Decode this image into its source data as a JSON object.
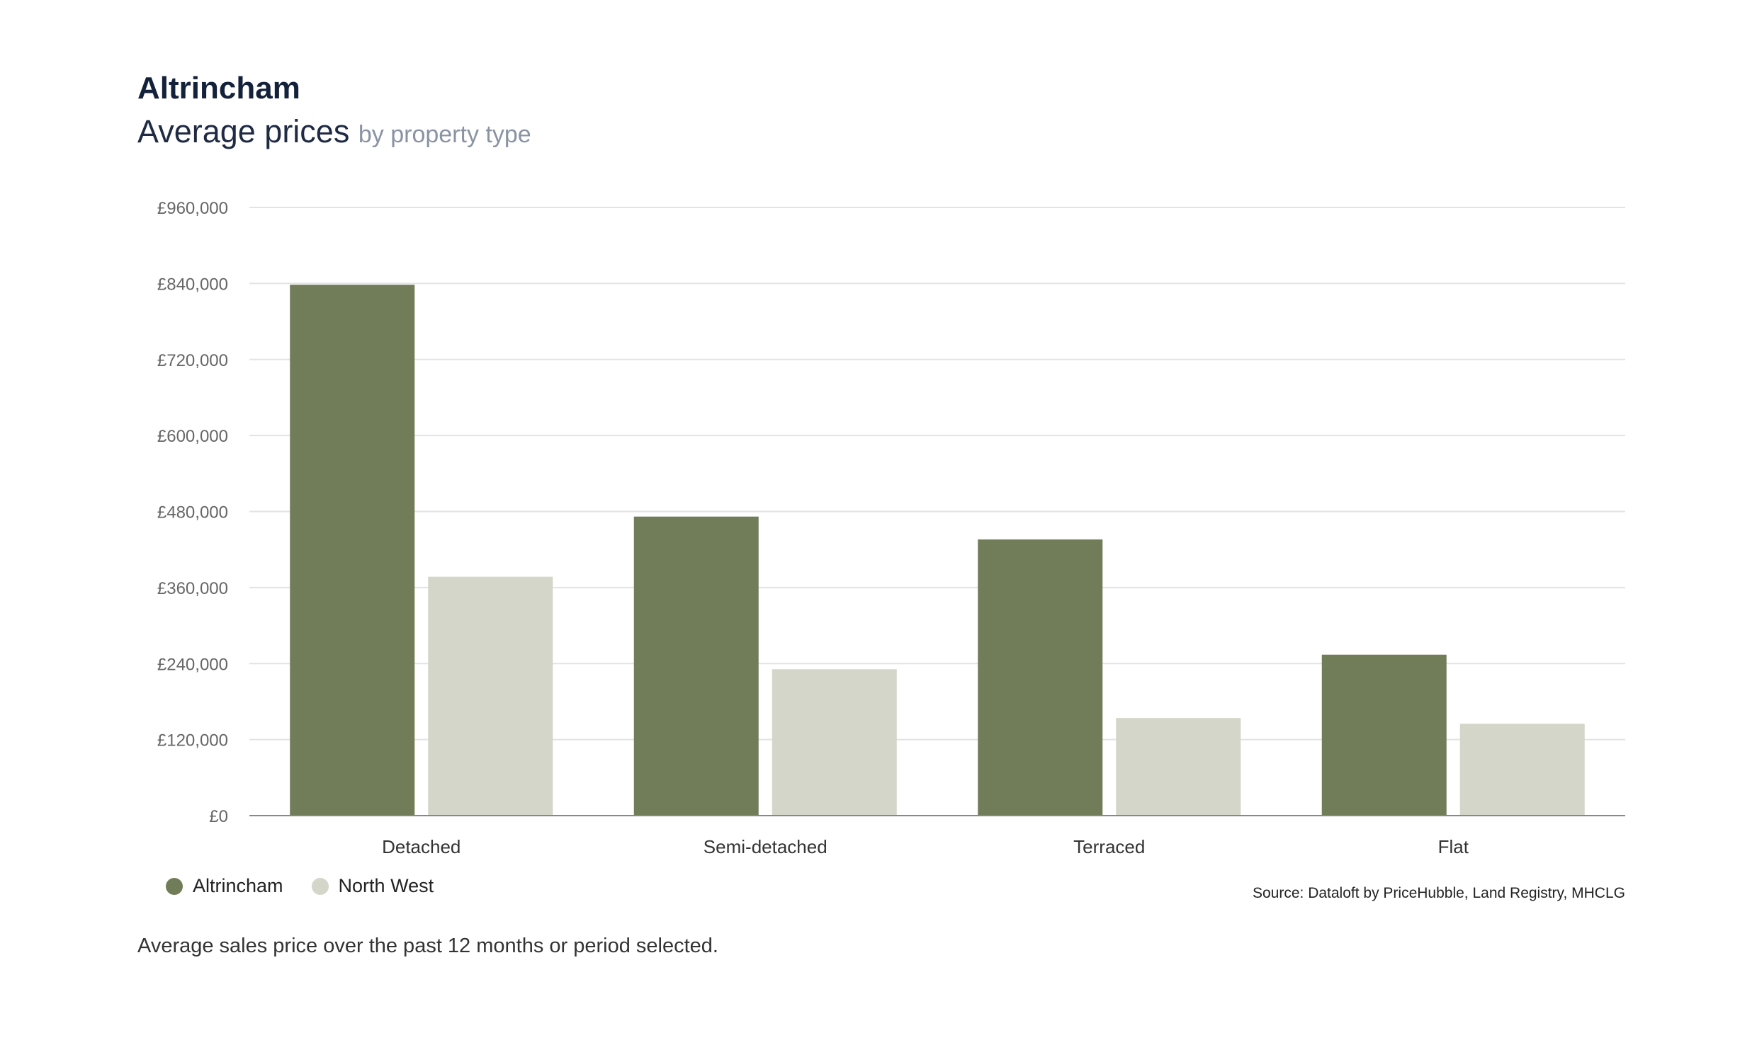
{
  "header": {
    "title": "Altrincham",
    "subtitle": "Average prices",
    "subtitle_muted": "by property type"
  },
  "chart_data": {
    "type": "bar",
    "categories": [
      "Detached",
      "Semi-detached",
      "Terraced",
      "Flat"
    ],
    "series": [
      {
        "name": "Altrincham",
        "color": "#717c58",
        "values": [
          838000,
          472000,
          436000,
          254000
        ]
      },
      {
        "name": "North West",
        "color": "#d3d6c8",
        "values": [
          377000,
          231000,
          154000,
          145000
        ]
      }
    ],
    "ylim": [
      0,
      960000
    ],
    "yticks": [
      0,
      120000,
      240000,
      360000,
      480000,
      600000,
      720000,
      840000,
      960000
    ],
    "ytick_labels": [
      "£0",
      "£120,000",
      "£240,000",
      "£360,000",
      "£480,000",
      "£600,000",
      "£720,000",
      "£840,000",
      "£960,000"
    ],
    "grid": true,
    "legend_placement": "bottom-left"
  },
  "footer": {
    "source": "Source: Dataloft by PriceHubble, Land Registry, MHCLG",
    "note": "Average sales price over the past 12 months or period selected."
  }
}
